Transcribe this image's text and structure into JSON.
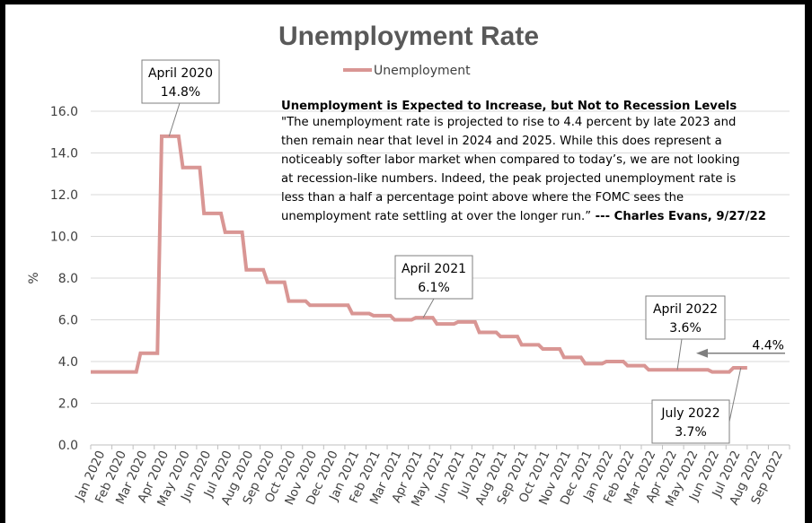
{
  "colors": {
    "line": "#d99694",
    "grid": "#d9d9d9",
    "box_border": "#7f7f7f",
    "arrow": "#7f7f7f"
  },
  "chart_data": {
    "type": "line",
    "title": "Unemployment Rate",
    "ylabel": "%",
    "ylim": [
      0,
      16
    ],
    "yticks": [
      "0.0",
      "2.0",
      "4.0",
      "6.0",
      "8.0",
      "10.0",
      "12.0",
      "14.0",
      "16.0"
    ],
    "categories": [
      "Jan 2020",
      "Feb 2020",
      "Mar 2020",
      "Apr 2020",
      "May 2020",
      "Jun 2020",
      "Jul 2020",
      "Aug 2020",
      "Sep 2020",
      "Oct 2020",
      "Nov 2020",
      "Dec 2020",
      "Jan 2021",
      "Feb 2021",
      "Mar 2021",
      "Apr 2021",
      "May 2021",
      "Jun 2021",
      "Jul 2021",
      "Aug 2021",
      "Sep 2021",
      "Oct 2021",
      "Nov 2021",
      "Dec 2021",
      "Jan 2022",
      "Feb 2022",
      "Mar 2022",
      "Apr 2022",
      "May 2022",
      "Jun 2022",
      "Jul 2022",
      "Aug 2022",
      "Sep 2022"
    ],
    "legend_position": "top-center",
    "series": [
      {
        "name": "Unemployment",
        "values": [
          3.5,
          3.5,
          4.4,
          14.8,
          13.3,
          11.1,
          10.2,
          8.4,
          7.8,
          6.9,
          6.7,
          6.7,
          6.3,
          6.2,
          6.0,
          6.1,
          5.8,
          5.9,
          5.4,
          5.2,
          4.8,
          4.6,
          4.2,
          3.9,
          4.0,
          3.8,
          3.6,
          3.6,
          3.6,
          3.5,
          3.7,
          null,
          null
        ]
      }
    ],
    "annotations": [
      {
        "line1": "April 2020",
        "line2": "14.8%",
        "month": 3
      },
      {
        "line1": "April 2021",
        "line2": "6.1%",
        "month": 15
      },
      {
        "line1": "April 2022",
        "line2": "3.6%",
        "month": 27
      },
      {
        "line1": "July 2022",
        "line2": "3.7%",
        "month": 30
      }
    ],
    "projection": {
      "label": "4.4%",
      "value": 4.4
    },
    "quote": {
      "heading": "Unemployment is Expected to Increase, but Not to Recession Levels",
      "lines": [
        "\"The unemployment rate is projected to rise to 4.4 percent by late 2023 and",
        "then remain near that level in 2024 and 2025. While this does represent a",
        "noticeably softer labor market when compared to today’s, we are not looking",
        "at recession-like numbers. Indeed, the peak projected unemployment rate is",
        "less than a half a percentage point above where the FOMC sees the"
      ],
      "last_line": "unemployment rate settling at over the longer run.”",
      "attribution": " --- Charles Evans, 9/27/22"
    }
  }
}
